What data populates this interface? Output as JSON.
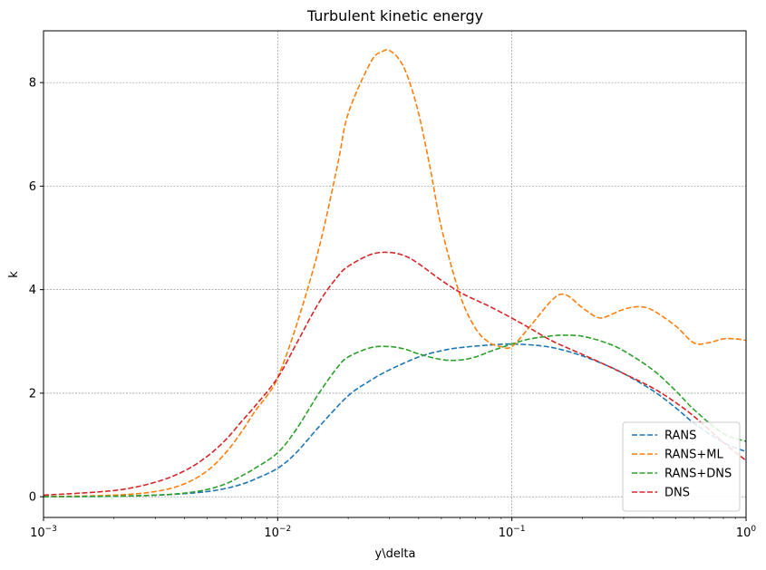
{
  "chart_data": {
    "type": "line",
    "title": "Turbulent kinetic energy",
    "xlabel": "y\\delta",
    "ylabel": "k",
    "xscale": "log",
    "xlim": [
      0.001,
      1
    ],
    "ylim": [
      -0.4,
      9.0
    ],
    "xticks": [
      {
        "value": 0.001,
        "base": "10",
        "exp": "−3"
      },
      {
        "value": 0.01,
        "base": "10",
        "exp": "−2"
      },
      {
        "value": 0.1,
        "base": "10",
        "exp": "−1"
      },
      {
        "value": 1,
        "base": "10",
        "exp": "0"
      }
    ],
    "yticks": [
      0,
      2,
      4,
      6,
      8
    ],
    "grid": true,
    "legend_position": "bottom-right",
    "series": [
      {
        "name": "RANS",
        "color": "#1f77b4",
        "linestyle": "dashed",
        "x": [
          0.001,
          0.002,
          0.003,
          0.004,
          0.005,
          0.006,
          0.007,
          0.008,
          0.01,
          0.012,
          0.015,
          0.02,
          0.025,
          0.03,
          0.04,
          0.05,
          0.06,
          0.08,
          0.1,
          0.13,
          0.16,
          0.2,
          0.25,
          0.3,
          0.4,
          0.5,
          0.6,
          0.8,
          1.0
        ],
        "y": [
          0.0,
          0.01,
          0.03,
          0.06,
          0.1,
          0.16,
          0.24,
          0.34,
          0.55,
          0.85,
          1.35,
          1.95,
          2.25,
          2.45,
          2.7,
          2.82,
          2.88,
          2.93,
          2.95,
          2.92,
          2.85,
          2.72,
          2.55,
          2.38,
          2.05,
          1.72,
          1.42,
          1.05,
          0.87
        ]
      },
      {
        "name": "RANS+ML",
        "color": "#ff7f0e",
        "linestyle": "dashed",
        "x": [
          0.001,
          0.002,
          0.003,
          0.004,
          0.005,
          0.006,
          0.007,
          0.008,
          0.009,
          0.01,
          0.012,
          0.015,
          0.018,
          0.02,
          0.025,
          0.028,
          0.03,
          0.033,
          0.036,
          0.04,
          0.045,
          0.05,
          0.06,
          0.07,
          0.08,
          0.09,
          0.1,
          0.12,
          0.15,
          0.17,
          0.2,
          0.23,
          0.25,
          0.3,
          0.35,
          0.4,
          0.5,
          0.6,
          0.7,
          0.8,
          0.9,
          1.0
        ],
        "y": [
          0.0,
          0.03,
          0.1,
          0.25,
          0.5,
          0.85,
          1.25,
          1.65,
          1.95,
          2.3,
          3.3,
          4.8,
          6.4,
          7.4,
          8.4,
          8.6,
          8.62,
          8.45,
          8.1,
          7.4,
          6.3,
          5.2,
          3.9,
          3.25,
          2.98,
          2.9,
          2.9,
          3.3,
          3.82,
          3.9,
          3.65,
          3.47,
          3.47,
          3.62,
          3.67,
          3.6,
          3.3,
          2.97,
          2.98,
          3.05,
          3.05,
          3.02
        ]
      },
      {
        "name": "RANS+DNS",
        "color": "#2ca02c",
        "linestyle": "dashed",
        "x": [
          0.001,
          0.002,
          0.003,
          0.004,
          0.005,
          0.006,
          0.007,
          0.008,
          0.01,
          0.012,
          0.015,
          0.018,
          0.02,
          0.025,
          0.03,
          0.035,
          0.04,
          0.05,
          0.06,
          0.07,
          0.08,
          0.1,
          0.12,
          0.15,
          0.17,
          0.2,
          0.25,
          0.3,
          0.4,
          0.5,
          0.6,
          0.8,
          1.0
        ],
        "y": [
          0.0,
          0.01,
          0.03,
          0.07,
          0.14,
          0.25,
          0.4,
          0.55,
          0.85,
          1.3,
          2.0,
          2.5,
          2.7,
          2.88,
          2.9,
          2.85,
          2.76,
          2.65,
          2.64,
          2.7,
          2.8,
          2.95,
          3.05,
          3.11,
          3.12,
          3.1,
          2.98,
          2.82,
          2.45,
          2.05,
          1.68,
          1.22,
          1.07
        ]
      },
      {
        "name": "DNS",
        "color": "#d62728",
        "linestyle": "dashed",
        "x": [
          0.001,
          0.002,
          0.003,
          0.004,
          0.005,
          0.006,
          0.007,
          0.008,
          0.01,
          0.012,
          0.015,
          0.018,
          0.02,
          0.025,
          0.03,
          0.035,
          0.04,
          0.05,
          0.06,
          0.07,
          0.08,
          0.1,
          0.12,
          0.15,
          0.2,
          0.25,
          0.3,
          0.4,
          0.5,
          0.6,
          0.8,
          1.0
        ],
        "y": [
          0.03,
          0.12,
          0.28,
          0.5,
          0.78,
          1.1,
          1.45,
          1.75,
          2.3,
          2.95,
          3.75,
          4.25,
          4.45,
          4.68,
          4.72,
          4.65,
          4.5,
          4.18,
          3.95,
          3.8,
          3.68,
          3.45,
          3.25,
          3.0,
          2.75,
          2.55,
          2.38,
          2.1,
          1.82,
          1.55,
          1.05,
          0.7
        ]
      }
    ]
  }
}
